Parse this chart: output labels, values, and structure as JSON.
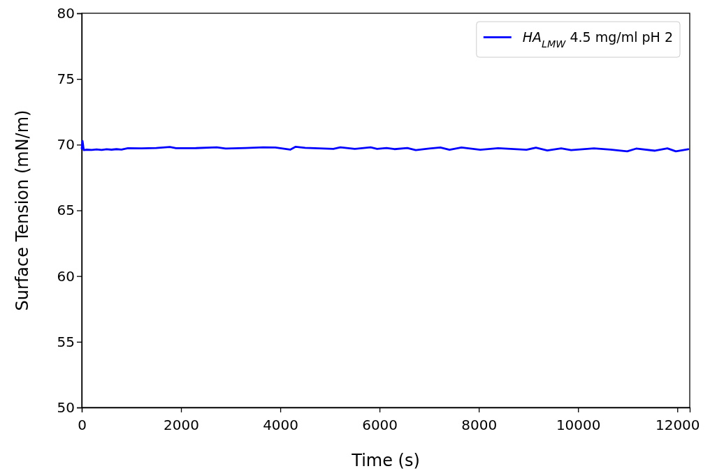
{
  "chart_data": {
    "type": "line",
    "xlabel": "Time (s)",
    "ylabel": "Surface Tension (mN/m)",
    "xlim": [
      0,
      12250
    ],
    "xticks": [
      0,
      2000,
      4000,
      6000,
      8000,
      10000,
      12000
    ],
    "ylim": [
      50,
      80
    ],
    "yticks": [
      50,
      55,
      60,
      65,
      70,
      75,
      80
    ],
    "legend": "top right",
    "grid": false,
    "series": [
      {
        "name": "HA$_{LMW}$ 4.5 mg/ml pH 2",
        "color": "#0000ff",
        "x": [
          0,
          15,
          40,
          100,
          200,
          300,
          400,
          500,
          600,
          700,
          800,
          930,
          1200,
          1500,
          1775,
          1900,
          2300,
          2720,
          2900,
          3300,
          3660,
          3900,
          4200,
          4310,
          4500,
          5070,
          5210,
          5500,
          5820,
          5950,
          6140,
          6300,
          6560,
          6730,
          7000,
          7225,
          7410,
          7650,
          8030,
          8390,
          8960,
          9150,
          9380,
          9660,
          9860,
          10320,
          10650,
          10990,
          11170,
          11550,
          11800,
          11970,
          12220
        ],
        "values": [
          69.7,
          70.28,
          69.59,
          69.62,
          69.6,
          69.64,
          69.6,
          69.65,
          69.62,
          69.66,
          69.63,
          69.73,
          69.72,
          69.75,
          69.82,
          69.73,
          69.74,
          69.8,
          69.71,
          69.75,
          69.8,
          69.79,
          69.62,
          69.84,
          69.76,
          69.68,
          69.8,
          69.68,
          69.8,
          69.68,
          69.75,
          69.66,
          69.75,
          69.59,
          69.7,
          69.79,
          69.61,
          69.79,
          69.61,
          69.73,
          69.61,
          69.77,
          69.56,
          69.72,
          69.59,
          69.72,
          69.63,
          69.49,
          69.7,
          69.54,
          69.72,
          69.49,
          69.65
        ]
      }
    ]
  }
}
